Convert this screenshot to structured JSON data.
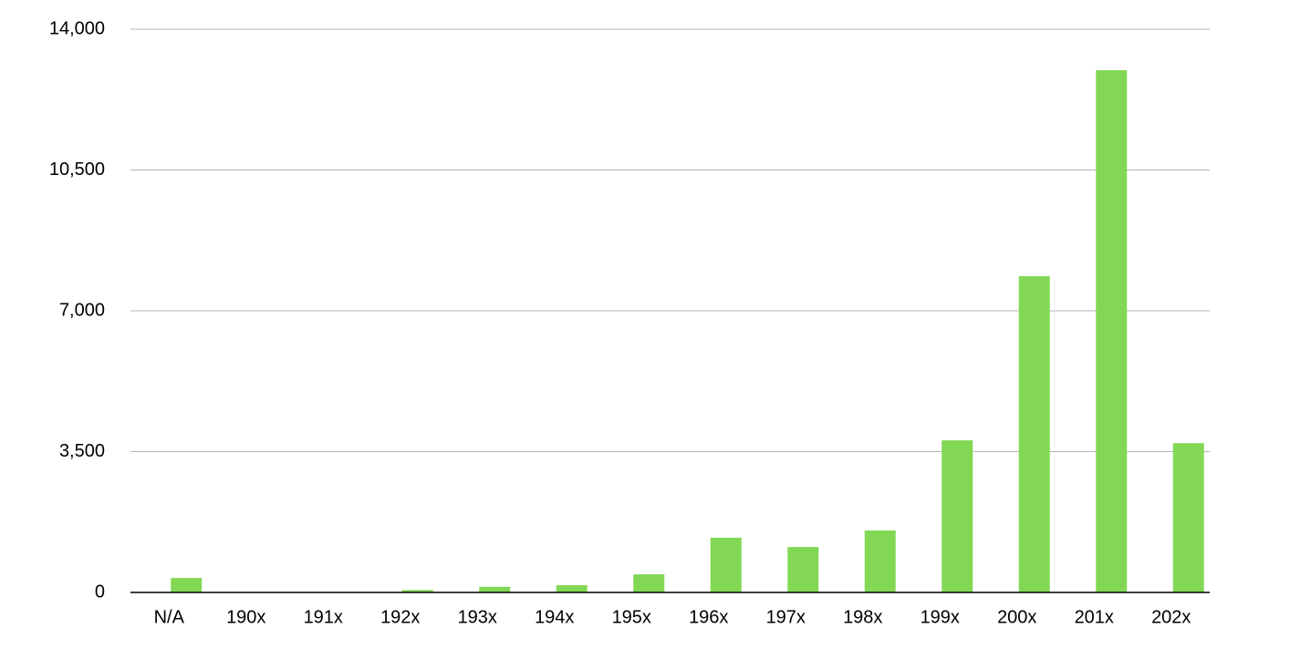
{
  "chart_data": {
    "type": "bar",
    "categories": [
      "N/A",
      "190x",
      "191x",
      "192x",
      "193x",
      "194x",
      "195x",
      "196x",
      "197x",
      "198x",
      "199x",
      "200x",
      "201x",
      "202x"
    ],
    "values": [
      360,
      0,
      0,
      60,
      140,
      180,
      450,
      1360,
      1130,
      1540,
      3780,
      7860,
      12980,
      3710
    ],
    "color": "#82d855",
    "ylim": [
      0,
      14000
    ],
    "yticks": [
      0,
      {
        "value": 3500,
        "label": "3,500"
      },
      {
        "value": 7000,
        "label": "7,000"
      },
      {
        "value": 10500,
        "label": "10,500"
      },
      {
        "value": 14000,
        "label": "14,000"
      }
    ],
    "grid": true
  }
}
